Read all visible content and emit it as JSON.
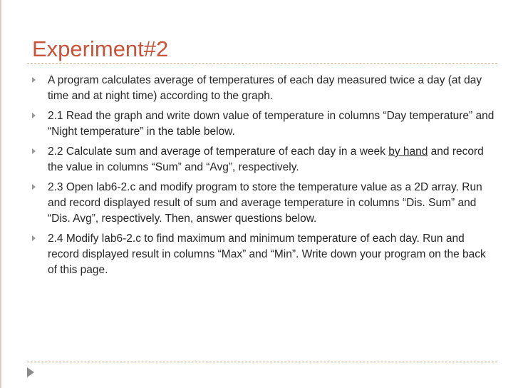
{
  "slide": {
    "title": "Experiment#2"
  },
  "bullets": [
    {
      "text": "A program calculates average of temperatures of each day measured twice a day (at day time and at night time) according to the graph."
    },
    {
      "text": "2.1 Read the graph and write down value of temperature in columns “Day temperature” and “Night temperature” in the table below."
    },
    {
      "text_before": "2.2 Calculate sum and average of temperature of each day in a week ",
      "underlined": "by hand",
      "text_after": " and record the value in columns “Sum” and “Avg”, respectively."
    },
    {
      "text": "2.3 Open lab6-2.c and modify program to store the temperature value as a 2D array. Run and record displayed result of sum and average temperature in columns “Dis. Sum” and “Dis. Avg”, respectively. Then, answer questions below."
    },
    {
      "text": "2.4 Modify lab6-2.c to find maximum and minimum temperature of each day. Run and record displayed result in columns “Max” and “Min”. Write down your program on the back of this page."
    }
  ],
  "colors": {
    "title": "#c9533a",
    "text": "#262626",
    "divider": "#c7a98a",
    "bullet_marker": "#9a9a9a"
  },
  "icons": {
    "bullet": "triangle-right",
    "nav": "play-arrow"
  }
}
